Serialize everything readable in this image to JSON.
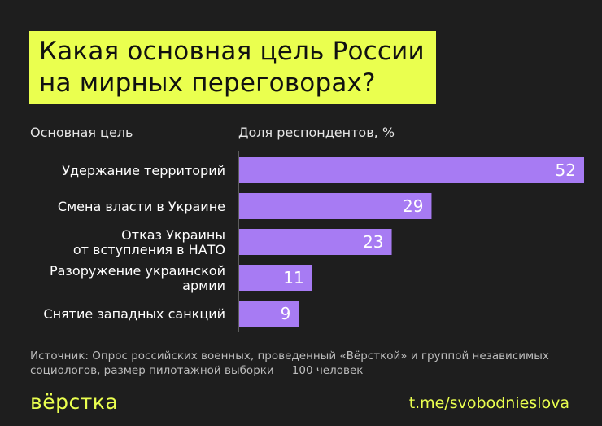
{
  "title": [
    "Какая основная цель России",
    "на мирных переговорах?"
  ],
  "column_headers": {
    "category": "Основная цель",
    "value": "Доля респондентов, %"
  },
  "chart_data": {
    "type": "bar",
    "orientation": "horizontal",
    "categories": [
      [
        "Удержание территорий"
      ],
      [
        "Смена власти в Украине"
      ],
      [
        "Отказ Украины",
        "от вступления в НАТО"
      ],
      [
        "Разоружение украинской",
        "армии"
      ],
      [
        "Снятие западных санкций"
      ]
    ],
    "values": [
      52,
      29,
      23,
      11,
      9
    ],
    "xlim": [
      0,
      52
    ],
    "bar_color": "#a77bf3",
    "label_color": "#ffffff"
  },
  "source": "Источник: Опрос российских военных, проведенный «Вёрсткой» и группой независимых социологов, размер пилотажной выборки — 100 человек",
  "logo": "вёрстка",
  "channel": "t.me/svobodnieslova",
  "colors": {
    "background": "#1e1e1e",
    "accent": "#eaff4f"
  }
}
